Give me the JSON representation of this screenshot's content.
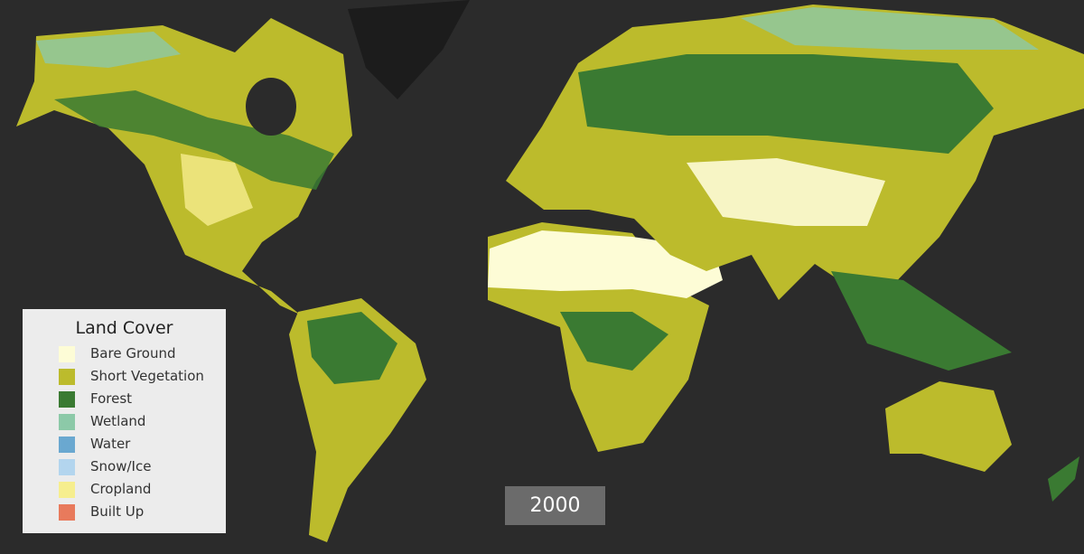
{
  "legend": {
    "title": "Land Cover",
    "items": [
      {
        "label": "Bare Ground",
        "color": "#fdfcd6"
      },
      {
        "label": "Short Vegetation",
        "color": "#bcbb2c"
      },
      {
        "label": "Forest",
        "color": "#3a7a32"
      },
      {
        "label": "Wetland",
        "color": "#8cc9a8"
      },
      {
        "label": "Water",
        "color": "#6aa8d0"
      },
      {
        "label": "Snow/Ice",
        "color": "#b3d5ee"
      },
      {
        "label": "Cropland",
        "color": "#f6ee8e"
      },
      {
        "label": "Built Up",
        "color": "#e87a5c"
      }
    ]
  },
  "year": "2000"
}
